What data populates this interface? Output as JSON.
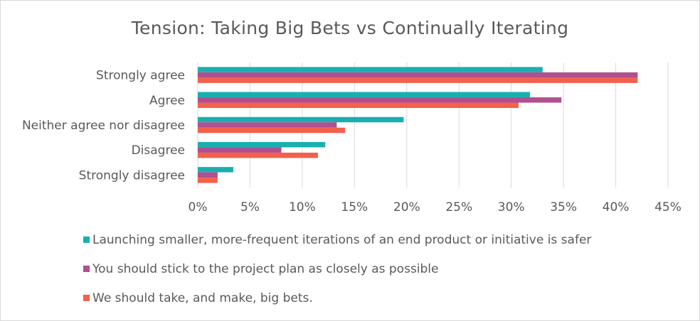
{
  "chart_data": {
    "type": "bar",
    "orientation": "horizontal",
    "title": "Tension: Taking Big Bets vs Continually Iterating",
    "categories": [
      "Strongly agree",
      "Agree",
      "Neither agree nor disagree",
      "Disagree",
      "Strongly disagree"
    ],
    "series": [
      {
        "name": "Launching smaller, more-frequent iterations of an end product or initiative is safer",
        "color": "#1aafaf",
        "values": [
          33.0,
          31.8,
          19.7,
          12.2,
          3.4
        ]
      },
      {
        "name": "You should stick to the project plan as closely as possible",
        "color": "#b04f92",
        "values": [
          42.1,
          34.8,
          13.3,
          8.0,
          1.9
        ]
      },
      {
        "name": "We should take, and make, big bets.",
        "color": "#f1614b",
        "values": [
          42.1,
          30.7,
          14.1,
          11.5,
          1.9
        ]
      }
    ],
    "xlim": [
      0,
      45
    ],
    "xticks": [
      "0%",
      "5%",
      "10%",
      "15%",
      "20%",
      "25%",
      "30%",
      "35%",
      "40%",
      "45%"
    ],
    "grid": "vertical",
    "legend_position": "bottom"
  }
}
